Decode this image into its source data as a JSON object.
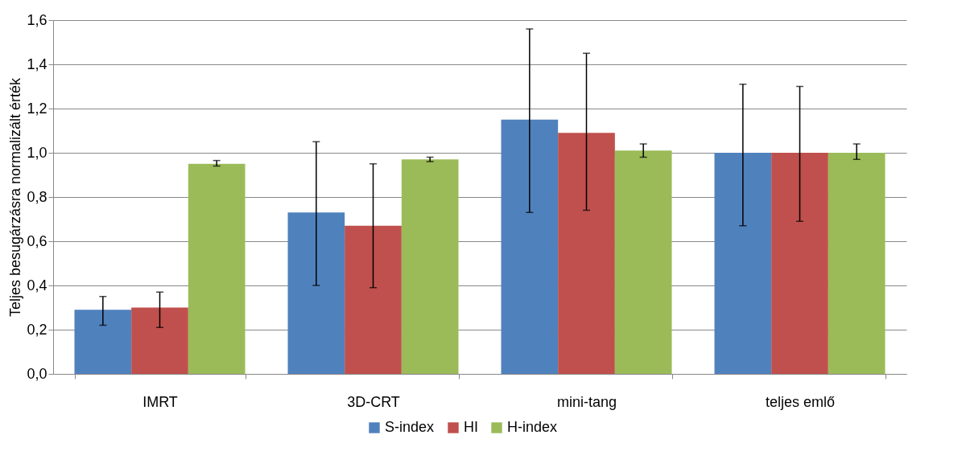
{
  "chart_data": {
    "type": "bar",
    "ylabel": "Teljes besugárzásra normalizált érték",
    "categories": [
      "IMRT",
      "3D-CRT",
      "mini-tang",
      "teljes emlő"
    ],
    "series": [
      {
        "name": "S-index",
        "color": "#4f81bd",
        "values": [
          0.29,
          0.73,
          1.15,
          1.0
        ],
        "errors": [
          [
            0.22,
            0.35
          ],
          [
            0.4,
            1.05
          ],
          [
            0.73,
            1.56
          ],
          [
            0.67,
            1.31
          ]
        ]
      },
      {
        "name": "HI",
        "color": "#c0504d",
        "values": [
          0.3,
          0.67,
          1.09,
          1.0
        ],
        "errors": [
          [
            0.21,
            0.37
          ],
          [
            0.39,
            0.95
          ],
          [
            0.74,
            1.45
          ],
          [
            0.69,
            1.3
          ]
        ]
      },
      {
        "name": "H-index",
        "color": "#9bbb59",
        "values": [
          0.95,
          0.97,
          1.01,
          1.0
        ],
        "errors": [
          [
            0.94,
            0.965
          ],
          [
            0.96,
            0.98
          ],
          [
            0.98,
            1.04
          ],
          [
            0.97,
            1.04
          ]
        ]
      }
    ],
    "ylim": [
      0,
      1.6
    ],
    "yticks": [
      {
        "value": 0,
        "label": "0,0"
      },
      {
        "value": 0.2,
        "label": "0,2"
      },
      {
        "value": 0.4,
        "label": "0,4"
      },
      {
        "value": 0.6,
        "label": "0,6"
      },
      {
        "value": 0.8,
        "label": "0,8"
      },
      {
        "value": 1.0,
        "label": "1,0"
      },
      {
        "value": 1.2,
        "label": "1,2"
      },
      {
        "value": 1.4,
        "label": "1,4"
      },
      {
        "value": 1.6,
        "label": "1,6"
      }
    ],
    "grid": "y",
    "legend": "bottom"
  }
}
